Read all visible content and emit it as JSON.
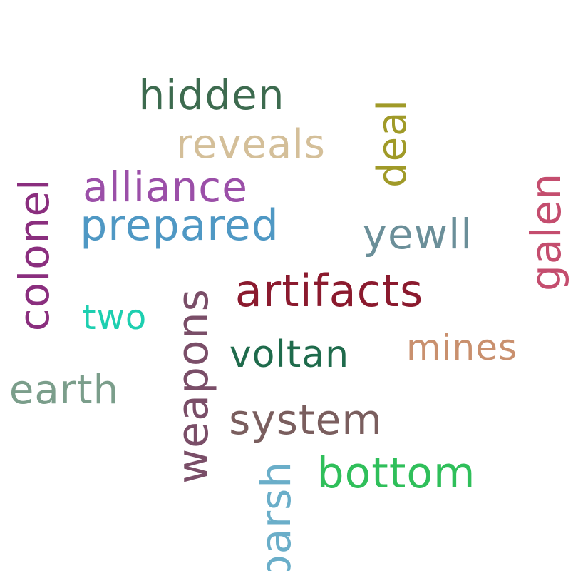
{
  "words": {
    "hidden": {
      "text": "hidden",
      "color": "#3d6b4f"
    },
    "reveals": {
      "text": "reveals",
      "color": "#d4bf99"
    },
    "alliance": {
      "text": "alliance",
      "color": "#9b4fa8"
    },
    "prepared": {
      "text": "prepared",
      "color": "#4f98c4"
    },
    "artifacts": {
      "text": "artifacts",
      "color": "#8b1a2e"
    },
    "two": {
      "text": "two",
      "color": "#1dcfb0"
    },
    "yewll": {
      "text": "yewll",
      "color": "#6b8f99"
    },
    "mines": {
      "text": "mines",
      "color": "#c9906e"
    },
    "voltan": {
      "text": "voltan",
      "color": "#1f6b4c"
    },
    "earth": {
      "text": "earth",
      "color": "#7b9e8b"
    },
    "system": {
      "text": "system",
      "color": "#7a5e5e"
    },
    "bottom": {
      "text": "bottom",
      "color": "#2fbf5a"
    },
    "colonel": {
      "text": "colonel",
      "color": "#8a2e7e"
    },
    "deal": {
      "text": "deal",
      "color": "#a09a28"
    },
    "galen": {
      "text": "galen",
      "color": "#c44d6e"
    },
    "weapons": {
      "text": "weapons",
      "color": "#7a4e68"
    },
    "parsh": {
      "text": "parsh",
      "color": "#6aaec9"
    }
  }
}
